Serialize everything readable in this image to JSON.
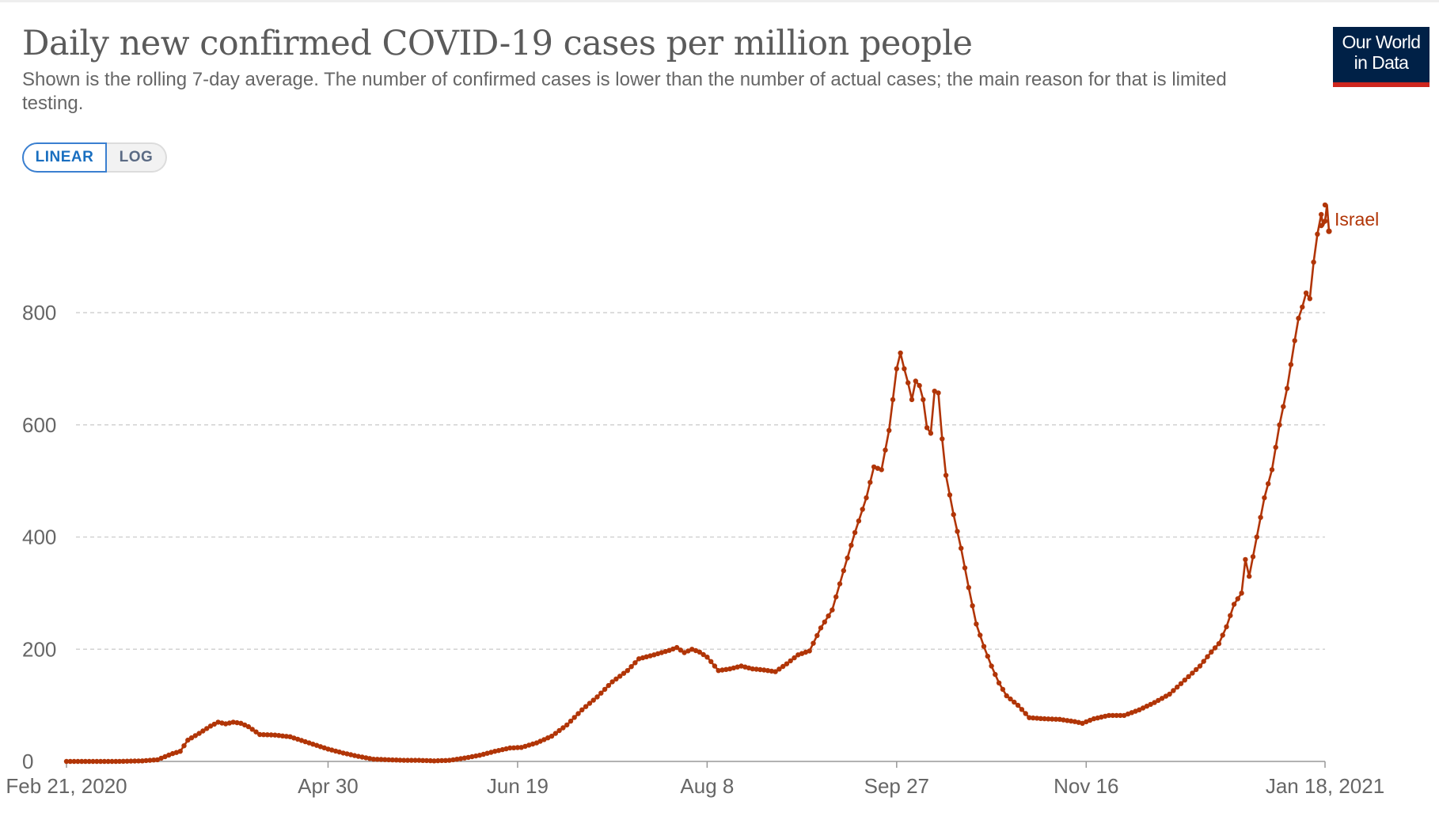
{
  "header": {
    "title": "Daily new confirmed COVID-19 cases per million people",
    "subtitle": "Shown is the rolling 7-day average. The number of confirmed cases is lower than the number of actual cases; the main reason for that is limited testing."
  },
  "logo": {
    "line1": "Our World",
    "line2": "in Data"
  },
  "scale_toggle": {
    "linear_label": "LINEAR",
    "log_label": "LOG",
    "selected": "LINEAR"
  },
  "colors": {
    "series": "#b13507",
    "logo_bg": "#002147",
    "logo_bar": "#ce261e",
    "toggle_active": "#1a6fc0"
  },
  "chart_data": {
    "type": "line",
    "title": "Daily new confirmed COVID-19 cases per million people",
    "xlabel": "",
    "ylabel": "",
    "x_ticks": [
      "Feb 21, 2020",
      "Apr 30",
      "Jun 19",
      "Aug 8",
      "Sep 27",
      "Nov 16",
      "Jan 18, 2021"
    ],
    "y_ticks": [
      0,
      200,
      400,
      600,
      800
    ],
    "ylim": [
      0,
      1000
    ],
    "xlim": [
      "2020-02-21",
      "2021-01-18"
    ],
    "grid": "horizontal dashed",
    "markers": true,
    "series": [
      {
        "name": "Israel",
        "color": "#b13507",
        "points": [
          [
            "2020-02-21",
            0
          ],
          [
            "2020-03-05",
            0
          ],
          [
            "2020-03-12",
            1
          ],
          [
            "2020-03-16",
            3
          ],
          [
            "2020-03-20",
            14
          ],
          [
            "2020-03-22",
            18
          ],
          [
            "2020-03-24",
            38
          ],
          [
            "2020-03-27",
            50
          ],
          [
            "2020-03-30",
            63
          ],
          [
            "2020-04-01",
            70
          ],
          [
            "2020-04-03",
            67
          ],
          [
            "2020-04-05",
            70
          ],
          [
            "2020-04-07",
            68
          ],
          [
            "2020-04-09",
            62
          ],
          [
            "2020-04-12",
            48
          ],
          [
            "2020-04-16",
            47
          ],
          [
            "2020-04-20",
            44
          ],
          [
            "2020-04-25",
            33
          ],
          [
            "2020-04-30",
            22
          ],
          [
            "2020-05-04",
            15
          ],
          [
            "2020-05-08",
            9
          ],
          [
            "2020-05-12",
            4
          ],
          [
            "2020-05-16",
            3
          ],
          [
            "2020-05-20",
            2
          ],
          [
            "2020-05-24",
            2
          ],
          [
            "2020-05-28",
            1
          ],
          [
            "2020-06-01",
            2
          ],
          [
            "2020-06-05",
            6
          ],
          [
            "2020-06-09",
            11
          ],
          [
            "2020-06-13",
            18
          ],
          [
            "2020-06-17",
            24
          ],
          [
            "2020-06-20",
            25
          ],
          [
            "2020-06-24",
            33
          ],
          [
            "2020-06-28",
            45
          ],
          [
            "2020-07-02",
            65
          ],
          [
            "2020-07-06",
            92
          ],
          [
            "2020-07-10",
            115
          ],
          [
            "2020-07-14",
            142
          ],
          [
            "2020-07-18",
            162
          ],
          [
            "2020-07-21",
            183
          ],
          [
            "2020-07-25",
            190
          ],
          [
            "2020-07-29",
            198
          ],
          [
            "2020-07-31",
            203
          ],
          [
            "2020-08-02",
            194
          ],
          [
            "2020-08-04",
            200
          ],
          [
            "2020-08-06",
            195
          ],
          [
            "2020-08-08",
            186
          ],
          [
            "2020-08-11",
            162
          ],
          [
            "2020-08-14",
            165
          ],
          [
            "2020-08-17",
            170
          ],
          [
            "2020-08-20",
            165
          ],
          [
            "2020-08-23",
            163
          ],
          [
            "2020-08-26",
            160
          ],
          [
            "2020-08-29",
            174
          ],
          [
            "2020-09-01",
            190
          ],
          [
            "2020-09-04",
            197
          ],
          [
            "2020-09-07",
            238
          ],
          [
            "2020-09-10",
            270
          ],
          [
            "2020-09-13",
            340
          ],
          [
            "2020-09-16",
            408
          ],
          [
            "2020-09-19",
            470
          ],
          [
            "2020-09-21",
            525
          ],
          [
            "2020-09-23",
            520
          ],
          [
            "2020-09-25",
            590
          ],
          [
            "2020-09-27",
            700
          ],
          [
            "2020-09-28",
            728
          ],
          [
            "2020-09-29",
            700
          ],
          [
            "2020-09-30",
            675
          ],
          [
            "2020-10-01",
            645
          ],
          [
            "2020-10-02",
            678
          ],
          [
            "2020-10-03",
            670
          ],
          [
            "2020-10-04",
            645
          ],
          [
            "2020-10-05",
            595
          ],
          [
            "2020-10-06",
            585
          ],
          [
            "2020-10-07",
            660
          ],
          [
            "2020-10-08",
            657
          ],
          [
            "2020-10-09",
            575
          ],
          [
            "2020-10-10",
            510
          ],
          [
            "2020-10-12",
            440
          ],
          [
            "2020-10-14",
            380
          ],
          [
            "2020-10-16",
            310
          ],
          [
            "2020-10-18",
            245
          ],
          [
            "2020-10-20",
            205
          ],
          [
            "2020-10-22",
            170
          ],
          [
            "2020-10-24",
            140
          ],
          [
            "2020-10-26",
            117
          ],
          [
            "2020-10-29",
            100
          ],
          [
            "2020-11-01",
            78
          ],
          [
            "2020-11-05",
            76
          ],
          [
            "2020-11-09",
            75
          ],
          [
            "2020-11-13",
            71
          ],
          [
            "2020-11-15",
            68
          ],
          [
            "2020-11-18",
            76
          ],
          [
            "2020-11-22",
            82
          ],
          [
            "2020-11-26",
            82
          ],
          [
            "2020-11-30",
            92
          ],
          [
            "2020-12-04",
            105
          ],
          [
            "2020-12-08",
            120
          ],
          [
            "2020-12-12",
            145
          ],
          [
            "2020-12-16",
            170
          ],
          [
            "2020-12-19",
            195
          ],
          [
            "2020-12-21",
            210
          ],
          [
            "2020-12-23",
            240
          ],
          [
            "2020-12-25",
            280
          ],
          [
            "2020-12-27",
            300
          ],
          [
            "2020-12-28",
            360
          ],
          [
            "2020-12-29",
            330
          ],
          [
            "2020-12-31",
            400
          ],
          [
            "2021-01-02",
            470
          ],
          [
            "2021-01-04",
            520
          ],
          [
            "2021-01-06",
            600
          ],
          [
            "2021-01-08",
            665
          ],
          [
            "2021-01-10",
            750
          ],
          [
            "2021-01-11",
            790
          ],
          [
            "2021-01-12",
            810
          ],
          [
            "2021-01-13",
            835
          ],
          [
            "2021-01-14",
            825
          ],
          [
            "2021-01-15",
            890
          ],
          [
            "2021-01-16",
            940
          ],
          [
            "2021-01-17",
            975
          ],
          [
            "2021-01-17",
            955
          ],
          [
            "2021-01-18",
            963
          ],
          [
            "2021-01-18",
            992
          ],
          [
            "2021-01-18",
            945
          ]
        ]
      }
    ],
    "series_label": "Israel"
  }
}
